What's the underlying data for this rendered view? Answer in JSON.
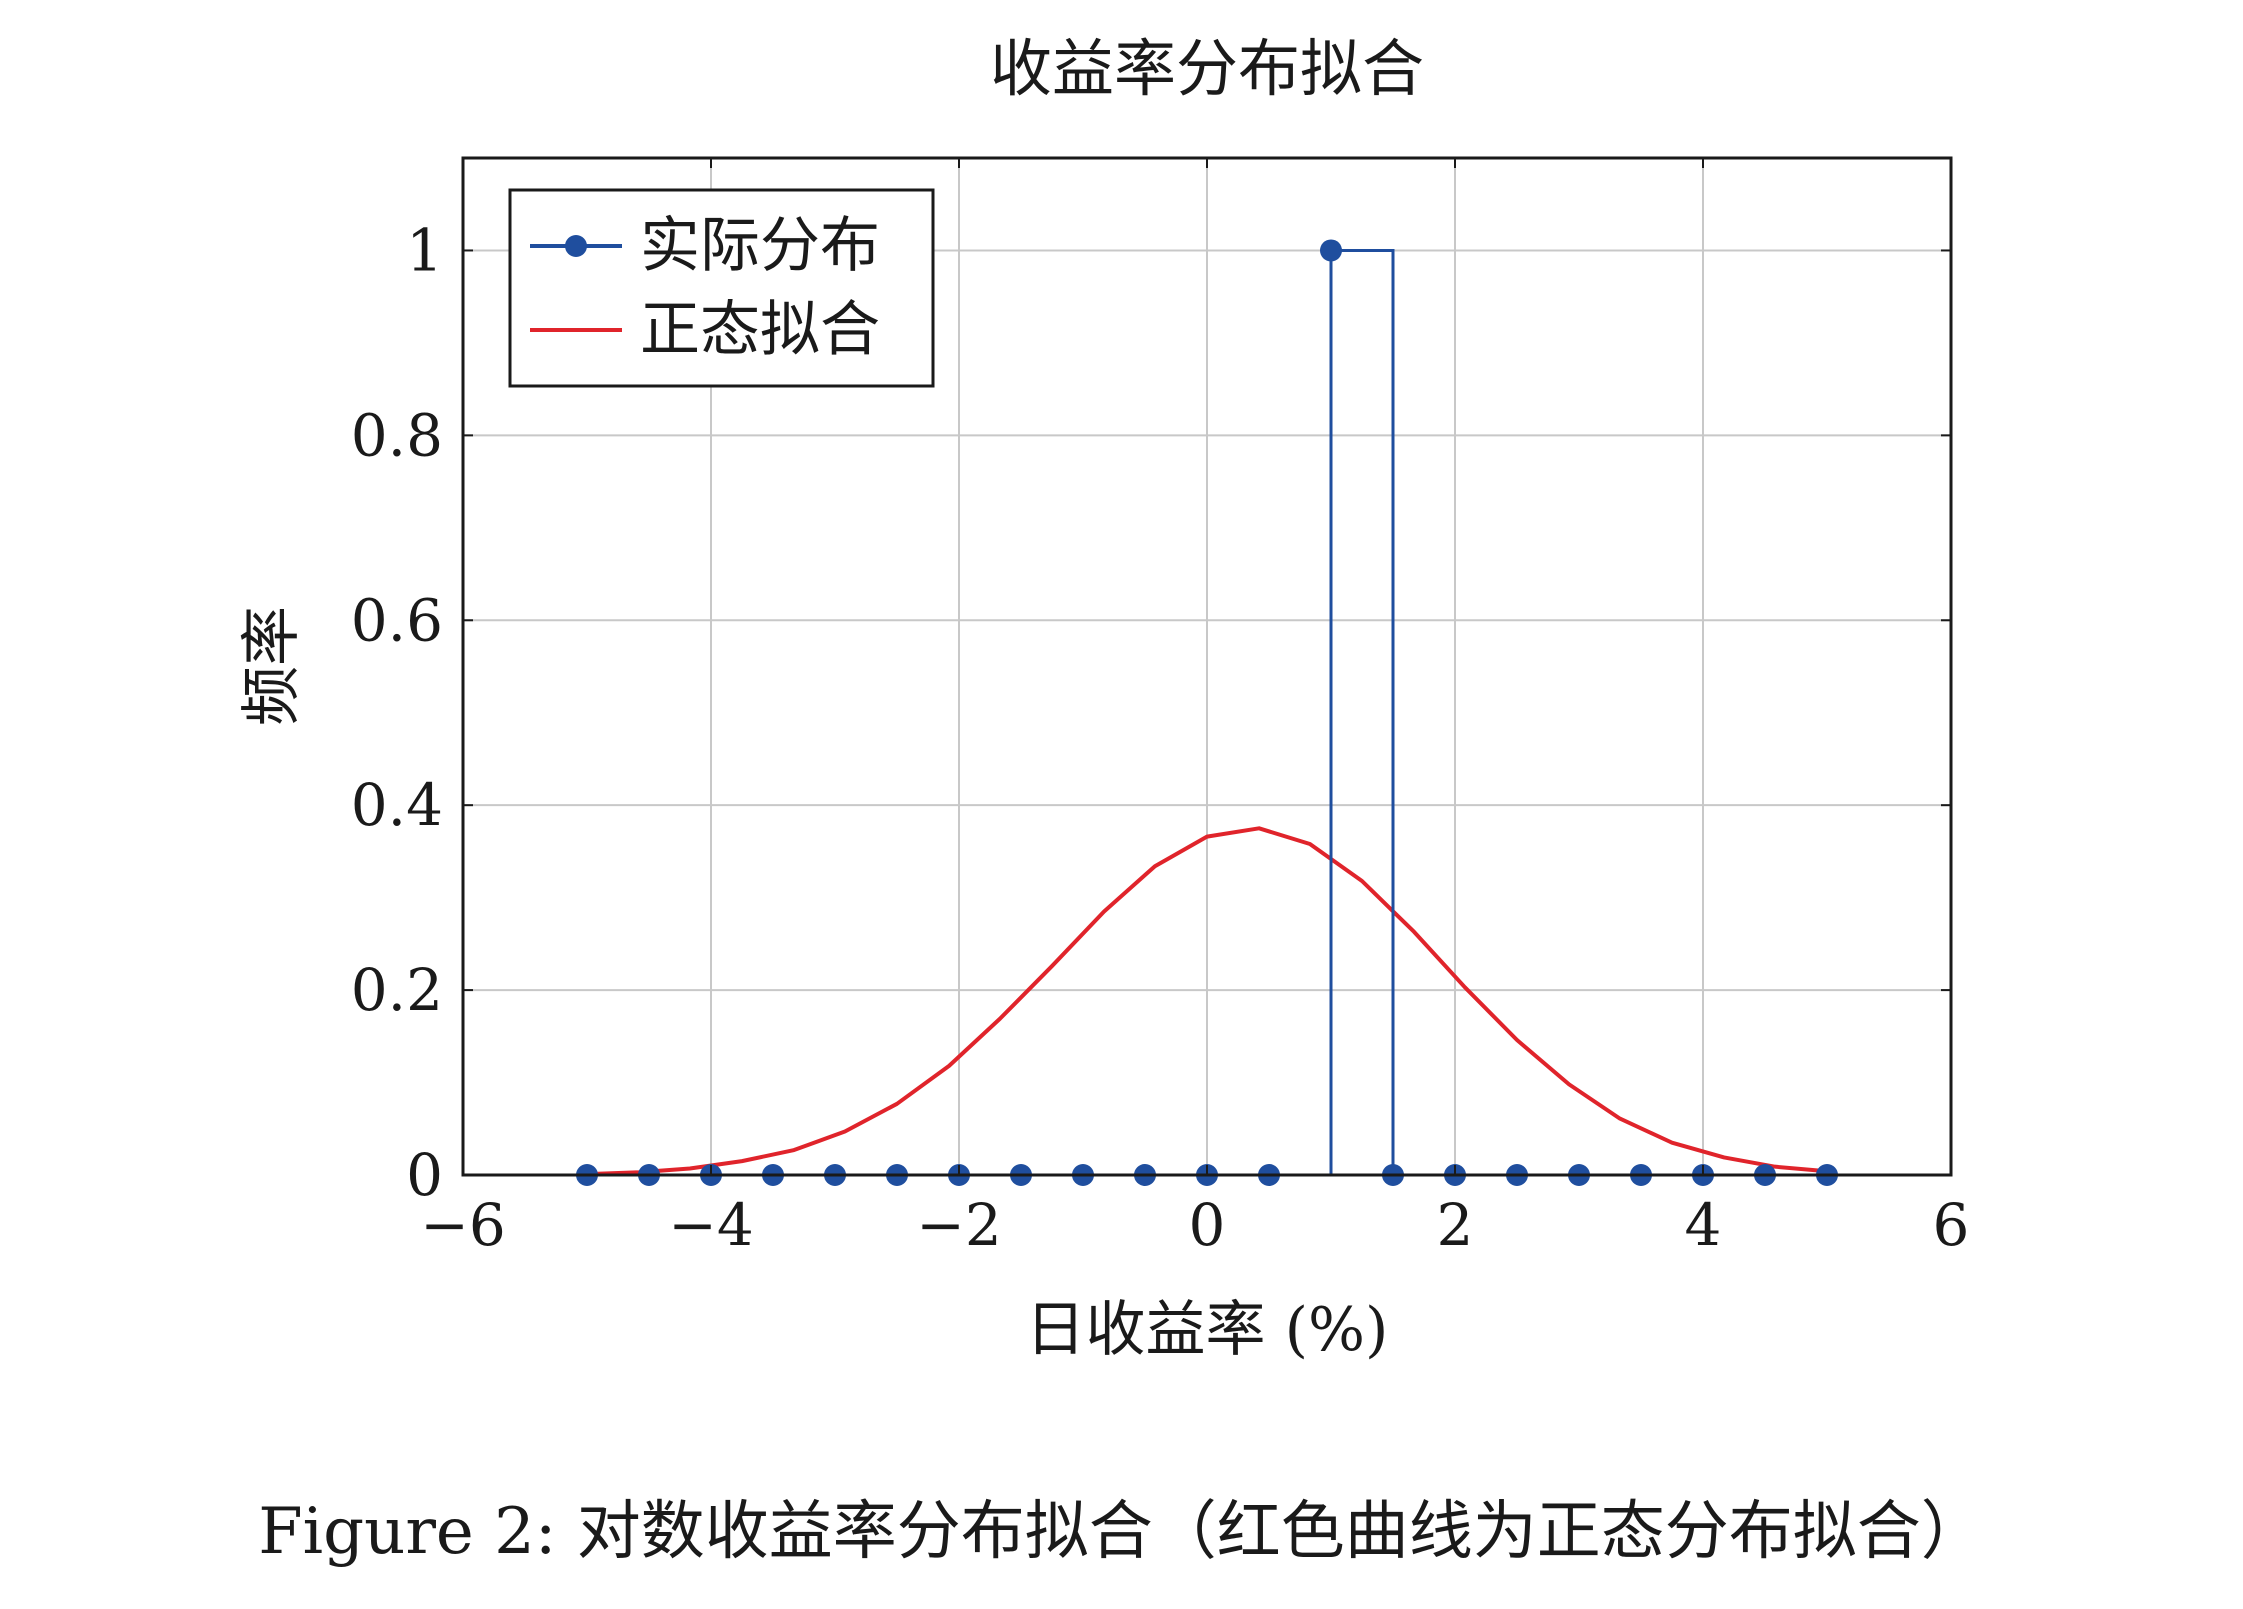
{
  "chart_data": {
    "type": "line",
    "title": "收益率分布拟合",
    "xlabel": "日收益率 (%)",
    "ylabel": "频率",
    "xlim": [
      -6,
      6
    ],
    "ylim": [
      0,
      1.1
    ],
    "x_ticks": [
      -6,
      -4,
      -2,
      0,
      2,
      4,
      6
    ],
    "x_tick_labels": [
      "−6",
      "−4",
      "−2",
      "0",
      "2",
      "4",
      "6"
    ],
    "y_ticks": [
      0,
      0.2,
      0.4,
      0.6,
      0.8,
      1
    ],
    "y_tick_labels": [
      "0",
      "0.2",
      "0.4",
      "0.6",
      "0.8",
      "1"
    ],
    "grid": true,
    "legend_position": "top-left",
    "series": [
      {
        "name": "实际分布",
        "color": "#1f4e9e",
        "marker": "circle",
        "line_style": "step",
        "x": [
          -5,
          -4.5,
          -4,
          -3.5,
          -3,
          -2.5,
          -2,
          -1.5,
          -1,
          -0.5,
          0,
          0.5,
          1,
          1.5,
          2,
          2.5,
          3,
          3.5,
          4,
          4.5,
          5
        ],
        "y": [
          0,
          0,
          0,
          0,
          0,
          0,
          0,
          0,
          0,
          0,
          0,
          0,
          1,
          0,
          0,
          0,
          0,
          0,
          0,
          0,
          0
        ]
      },
      {
        "name": "正态拟合",
        "color": "#e0242b",
        "marker": "none",
        "line_style": "solid",
        "x": [
          -5,
          -4.58,
          -4.17,
          -3.75,
          -3.33,
          -2.92,
          -2.5,
          -2.08,
          -1.67,
          -1.25,
          -0.83,
          -0.42,
          0,
          0.42,
          0.83,
          1.25,
          1.67,
          2.08,
          2.5,
          2.92,
          3.33,
          3.75,
          4.17,
          4.58,
          5
        ],
        "y": [
          0.001,
          0.003,
          0.007,
          0.015,
          0.027,
          0.047,
          0.077,
          0.118,
          0.169,
          0.226,
          0.285,
          0.334,
          0.366,
          0.375,
          0.358,
          0.318,
          0.263,
          0.203,
          0.146,
          0.098,
          0.061,
          0.035,
          0.019,
          0.009,
          0.004
        ]
      }
    ]
  },
  "caption": "Figure 2: 对数收益率分布拟合（红色曲线为正态分布拟合）"
}
